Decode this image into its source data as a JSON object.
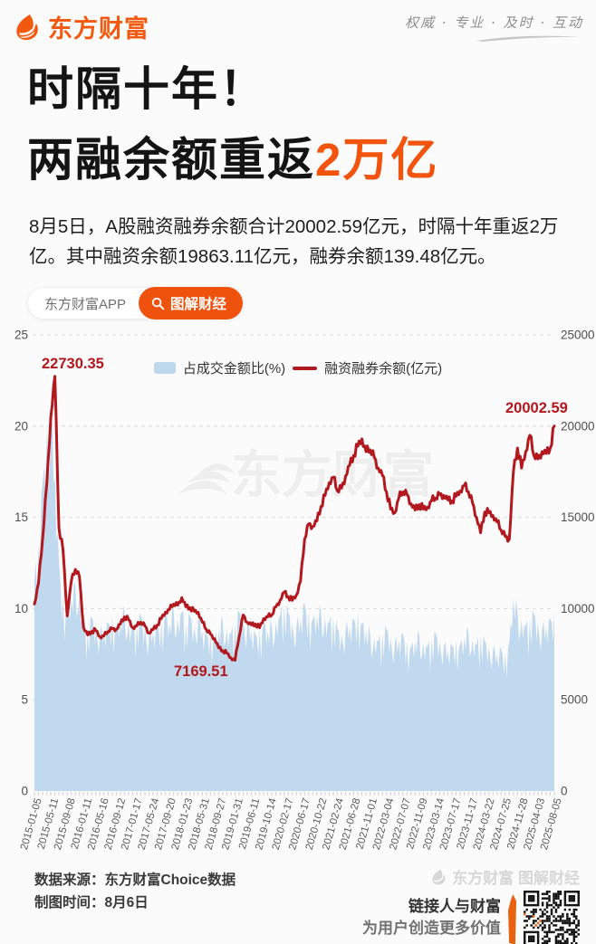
{
  "header": {
    "logo_text": "东方财富",
    "tagline": "权威 · 专业 · 及时 · 互动"
  },
  "headline": {
    "line1": "时隔十年！",
    "line2_prefix": "两融余额重返",
    "line2_highlight": "2万亿"
  },
  "lede": "8月5日，A股融资融券余额合计20002.59亿元，时隔十年重返2万亿。其中融资余额19863.11亿元，融券余额139.48亿元。",
  "pills": {
    "app_label": "东方财富APP",
    "cta_label": "图解财经"
  },
  "chart_data": {
    "type": "area+line",
    "title": "",
    "legend": [
      "占成交金额比(%)",
      "融资融券余额(亿元)"
    ],
    "legend_position": "top-center",
    "grid": "dashed-horizontal",
    "watermark": "东方财富",
    "left_axis": {
      "label": "占成交金额比(%)",
      "range": [
        0,
        25
      ],
      "ticks": [
        "25",
        "20",
        "15",
        "10",
        "5",
        "0"
      ]
    },
    "right_axis": {
      "label": "融资融券余额(亿元)",
      "range": [
        0,
        25000
      ],
      "ticks": [
        "25000",
        "20000",
        "15000",
        "10000",
        "5000",
        "0"
      ]
    },
    "x_tick_labels": [
      "2015-01-05",
      "2015-05-11",
      "2015-09-08",
      "2016-01-11",
      "2016-05-16",
      "2016-09-12",
      "2017-01-17",
      "2017-05-24",
      "2017-09-20",
      "2018-01-23",
      "2018-05-31",
      "2018-09-27",
      "2019-01-31",
      "2019-06-11",
      "2019-10-14",
      "2020-02-17",
      "2020-06-17",
      "2020-10-22",
      "2021-02-24",
      "2021-06-28",
      "2021-11-01",
      "2022-03-04",
      "2022-07-07",
      "2022-11-09",
      "2023-03-14",
      "2023-07-17",
      "2023-11-17",
      "2024-03-22",
      "2024-07-25",
      "2024-11-28",
      "2025-04-03",
      "2025-08-05"
    ],
    "series": [
      {
        "name": "融资融券余额(亿元)",
        "axis": "right",
        "style": "line",
        "color": "#b2191e",
        "values": [
          10250,
          11400,
          13800,
          16800,
          20500,
          22730.35,
          14400,
          13200,
          9600,
          11500,
          12150,
          11740,
          8960,
          8550,
          8750,
          8800,
          8450,
          8500,
          8750,
          8900,
          8870,
          9150,
          9550,
          9390,
          8950,
          9050,
          9250,
          9050,
          8650,
          8850,
          9100,
          9450,
          9800,
          9950,
          10250,
          10190,
          10600,
          10100,
          10050,
          9850,
          9800,
          9250,
          8850,
          8600,
          8350,
          7850,
          7700,
          7550,
          7300,
          7169.51,
          8450,
          9650,
          9250,
          9100,
          9150,
          8950,
          9450,
          9550,
          9650,
          10100,
          10450,
          10900,
          10650,
          10450,
          10750,
          11500,
          13800,
          14650,
          14500,
          14800,
          15600,
          16200,
          16900,
          17200,
          16450,
          16600,
          17250,
          17850,
          18400,
          18900,
          19300,
          18600,
          18700,
          18300,
          17700,
          17300,
          16400,
          15450,
          15250,
          16050,
          16400,
          16250,
          15750,
          15400,
          15700,
          15450,
          15550,
          15900,
          16050,
          16250,
          16200,
          15950,
          15900,
          16150,
          16450,
          16750,
          16400,
          15800,
          15000,
          14150,
          15300,
          15250,
          15100,
          14750,
          14300,
          13950,
          13800,
          17500,
          18800,
          17700,
          18600,
          19500,
          18400,
          18200,
          18600,
          18500,
          18800,
          20002.59
        ]
      },
      {
        "name": "占成交金额比(%)",
        "axis": "left",
        "style": "area",
        "color": "#bdd7ed",
        "values": [
          11.5,
          13.5,
          16.8,
          19.6,
          20.3,
          17.2,
          12.5,
          10.6,
          9.8,
          10.6,
          11.2,
          10.8,
          9.2,
          8.8,
          9.5,
          9.0,
          8.6,
          8.8,
          9.2,
          9.6,
          9.0,
          9.4,
          9.8,
          9.2,
          8.8,
          9.2,
          9.6,
          9.0,
          8.5,
          8.8,
          9.0,
          9.4,
          9.7,
          9.2,
          9.9,
          9.4,
          9.8,
          9.2,
          9.6,
          9.0,
          9.4,
          8.8,
          8.6,
          8.9,
          8.4,
          8.8,
          9.3,
          8.9,
          8.6,
          9.2,
          9.8,
          9.4,
          9.0,
          8.8,
          8.6,
          8.9,
          9.2,
          8.8,
          9.0,
          9.3,
          9.6,
          10.2,
          9.8,
          9.2,
          9.0,
          9.4,
          10.3,
          9.8,
          9.4,
          9.6,
          9.8,
          9.5,
          9.2,
          9.6,
          8.9,
          8.6,
          8.8,
          9.0,
          9.4,
          9.8,
          9.2,
          8.8,
          8.6,
          8.4,
          8.2,
          8.6,
          8.9,
          8.4,
          8.0,
          8.3,
          8.6,
          8.2,
          7.9,
          8.2,
          8.5,
          8.1,
          7.9,
          8.3,
          8.6,
          8.2,
          7.9,
          7.7,
          8.0,
          8.3,
          8.0,
          8.4,
          8.7,
          8.3,
          8.0,
          8.5,
          8.2,
          7.9,
          7.7,
          7.5,
          7.8,
          7.6,
          8.2,
          10.6,
          9.8,
          9.4,
          9.0,
          9.4,
          9.7,
          9.2,
          8.8,
          9.0,
          9.4,
          9.9
        ]
      }
    ],
    "annotations": [
      {
        "id": "peak",
        "text": "22730.35"
      },
      {
        "id": "low",
        "text": "7169.51"
      },
      {
        "id": "current",
        "text": "20002.59"
      }
    ]
  },
  "footer": {
    "source_line": "数据来源：东方财富Choice数据",
    "time_line": "制图时间：8月6日",
    "watermark": "东方财富 图解财经",
    "slogan1": "链接人与财富",
    "slogan2": "为用户创造更多价值"
  },
  "colors": {
    "brand_orange": "#f2590e",
    "button_orange": "#ef520c",
    "line_red": "#b2191e",
    "annotation_red": "#b3171c",
    "area_blue": "#bdd7ed",
    "grid_gray": "#dcdcdc"
  }
}
